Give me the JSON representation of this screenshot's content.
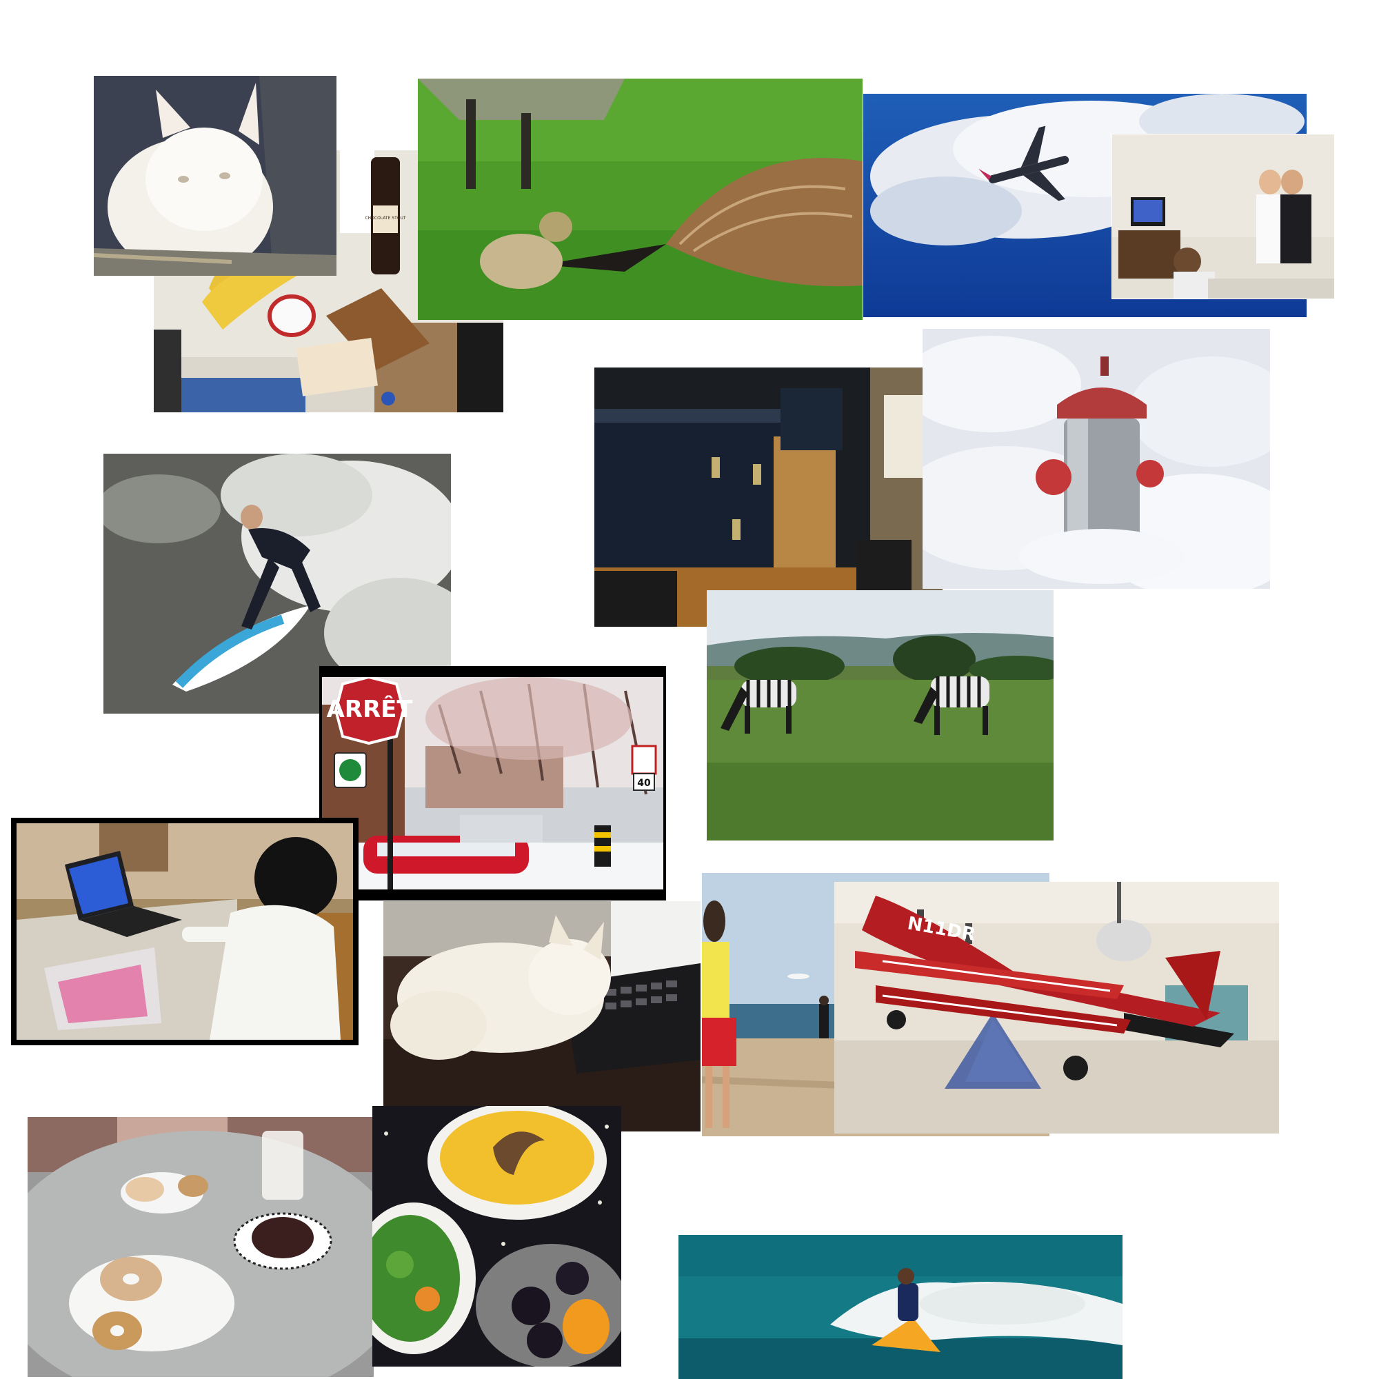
{
  "collage": {
    "photos": [
      {
        "name": "cat-in-car-window-photo"
      },
      {
        "name": "groceries-on-counter-photo",
        "labels": {
          "bottle": "CHOCOLATE STOUT"
        }
      },
      {
        "name": "goose-and-gosling-photo"
      },
      {
        "name": "airplane-in-clouds-photo"
      },
      {
        "name": "people-playing-video-game-photo"
      },
      {
        "name": "stacked-suitcases-photo"
      },
      {
        "name": "fire-hydrant-in-snow-photo"
      },
      {
        "name": "surfer-on-wave-photo"
      },
      {
        "name": "stop-sign-street-photo",
        "labels": {
          "stop_sign": "ARRÊT",
          "speed": "40"
        }
      },
      {
        "name": "zebras-grazing-photo"
      },
      {
        "name": "child-at-laptop-photo"
      },
      {
        "name": "cat-on-keyboard-photo"
      },
      {
        "name": "beach-frisbee-photo"
      },
      {
        "name": "red-biplane-display-photo",
        "labels": {
          "tail": "N11DR"
        }
      },
      {
        "name": "donuts-on-table-photo"
      },
      {
        "name": "soup-and-fruit-bowls-photo"
      },
      {
        "name": "jet-ski-rider-photo"
      }
    ]
  }
}
